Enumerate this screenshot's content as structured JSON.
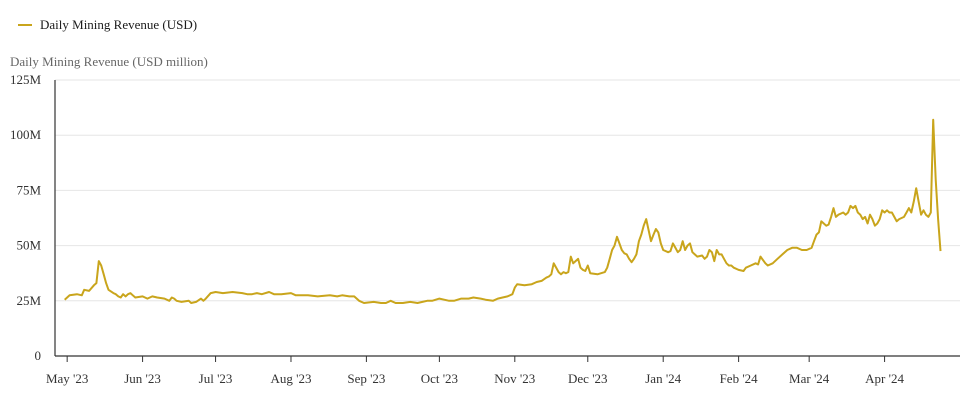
{
  "chart_data": {
    "type": "line",
    "ylabel": "Daily Mining Revenue (USD million)",
    "legend": {
      "position": "top-left"
    },
    "grid": {
      "horizontal": true,
      "vertical": false
    },
    "colors": {
      "line": "#c9a51c",
      "grid": "#e6e6e6",
      "axis": "#333333"
    },
    "y_ticks": [
      {
        "value": 0,
        "label": "0"
      },
      {
        "value": 25,
        "label": "25M"
      },
      {
        "value": 50,
        "label": "50M"
      },
      {
        "value": 75,
        "label": "75M"
      },
      {
        "value": 100,
        "label": "100M"
      },
      {
        "value": 125,
        "label": "125M"
      }
    ],
    "ylim": [
      0,
      125
    ],
    "xlim": [
      "2023-04-26",
      "2024-05-02"
    ],
    "x_ticks": [
      {
        "date": "2023-05-01",
        "label": "May '23"
      },
      {
        "date": "2023-06-01",
        "label": "Jun '23"
      },
      {
        "date": "2023-07-01",
        "label": "Jul '23"
      },
      {
        "date": "2023-08-01",
        "label": "Aug '23"
      },
      {
        "date": "2023-09-01",
        "label": "Sep '23"
      },
      {
        "date": "2023-10-01",
        "label": "Oct '23"
      },
      {
        "date": "2023-11-01",
        "label": "Nov '23"
      },
      {
        "date": "2023-12-01",
        "label": "Dec '23"
      },
      {
        "date": "2024-01-01",
        "label": "Jan '24"
      },
      {
        "date": "2024-02-01",
        "label": "Feb '24"
      },
      {
        "date": "2024-03-01",
        "label": "Mar '24"
      },
      {
        "date": "2024-04-01",
        "label": "Apr '24"
      }
    ],
    "series": [
      {
        "name": "Daily Mining Revenue (USD)",
        "points": [
          [
            "2023-04-30",
            25.5
          ],
          [
            "2023-05-02",
            27.5
          ],
          [
            "2023-05-05",
            28
          ],
          [
            "2023-05-07",
            27.5
          ],
          [
            "2023-05-08",
            30
          ],
          [
            "2023-05-10",
            29.5
          ],
          [
            "2023-05-12",
            32
          ],
          [
            "2023-05-13",
            33
          ],
          [
            "2023-05-14",
            43
          ],
          [
            "2023-05-15",
            41
          ],
          [
            "2023-05-16",
            37
          ],
          [
            "2023-05-17",
            33
          ],
          [
            "2023-05-18",
            30
          ],
          [
            "2023-05-20",
            28.5
          ],
          [
            "2023-05-21",
            28
          ],
          [
            "2023-05-22",
            27
          ],
          [
            "2023-05-23",
            26.5
          ],
          [
            "2023-05-24",
            28
          ],
          [
            "2023-05-25",
            27
          ],
          [
            "2023-05-26",
            28
          ],
          [
            "2023-05-27",
            28.5
          ],
          [
            "2023-05-28",
            27.5
          ],
          [
            "2023-05-29",
            26.5
          ],
          [
            "2023-06-01",
            27
          ],
          [
            "2023-06-03",
            26
          ],
          [
            "2023-06-05",
            27
          ],
          [
            "2023-06-07",
            26.5
          ],
          [
            "2023-06-10",
            26
          ],
          [
            "2023-06-12",
            25
          ],
          [
            "2023-06-13",
            26.5
          ],
          [
            "2023-06-14",
            26
          ],
          [
            "2023-06-15",
            25
          ],
          [
            "2023-06-17",
            24.5
          ],
          [
            "2023-06-20",
            25
          ],
          [
            "2023-06-21",
            24
          ],
          [
            "2023-06-23",
            24.5
          ],
          [
            "2023-06-25",
            26
          ],
          [
            "2023-06-26",
            25
          ],
          [
            "2023-06-27",
            26
          ],
          [
            "2023-06-29",
            28.5
          ],
          [
            "2023-07-01",
            29
          ],
          [
            "2023-07-04",
            28.5
          ],
          [
            "2023-07-08",
            29
          ],
          [
            "2023-07-12",
            28.5
          ],
          [
            "2023-07-14",
            28
          ],
          [
            "2023-07-16",
            28
          ],
          [
            "2023-07-18",
            28.5
          ],
          [
            "2023-07-20",
            28
          ],
          [
            "2023-07-23",
            29
          ],
          [
            "2023-07-25",
            28
          ],
          [
            "2023-07-28",
            28
          ],
          [
            "2023-08-01",
            28.5
          ],
          [
            "2023-08-03",
            27.5
          ],
          [
            "2023-08-08",
            27.5
          ],
          [
            "2023-08-12",
            27
          ],
          [
            "2023-08-17",
            27.5
          ],
          [
            "2023-08-20",
            27
          ],
          [
            "2023-08-22",
            27.5
          ],
          [
            "2023-08-25",
            27
          ],
          [
            "2023-08-27",
            27
          ],
          [
            "2023-08-29",
            25
          ],
          [
            "2023-08-31",
            24
          ],
          [
            "2023-09-04",
            24.5
          ],
          [
            "2023-09-07",
            24
          ],
          [
            "2023-09-09",
            24
          ],
          [
            "2023-09-11",
            25
          ],
          [
            "2023-09-13",
            24
          ],
          [
            "2023-09-16",
            24
          ],
          [
            "2023-09-19",
            24.5
          ],
          [
            "2023-09-22",
            24
          ],
          [
            "2023-09-24",
            24.5
          ],
          [
            "2023-09-26",
            25
          ],
          [
            "2023-09-28",
            25
          ],
          [
            "2023-10-01",
            26
          ],
          [
            "2023-10-03",
            25.5
          ],
          [
            "2023-10-05",
            25
          ],
          [
            "2023-10-07",
            25
          ],
          [
            "2023-10-10",
            26
          ],
          [
            "2023-10-13",
            26
          ],
          [
            "2023-10-15",
            26.5
          ],
          [
            "2023-10-18",
            26
          ],
          [
            "2023-10-20",
            25.5
          ],
          [
            "2023-10-23",
            25
          ],
          [
            "2023-10-25",
            26
          ],
          [
            "2023-10-27",
            26.5
          ],
          [
            "2023-10-29",
            27
          ],
          [
            "2023-10-31",
            28
          ],
          [
            "2023-11-01",
            31
          ],
          [
            "2023-11-02",
            32.5
          ],
          [
            "2023-11-05",
            32
          ],
          [
            "2023-11-08",
            32.5
          ],
          [
            "2023-11-10",
            33.5
          ],
          [
            "2023-11-12",
            34
          ],
          [
            "2023-11-14",
            35.5
          ],
          [
            "2023-11-15",
            36
          ],
          [
            "2023-11-16",
            37
          ],
          [
            "2023-11-17",
            42
          ],
          [
            "2023-11-18",
            40
          ],
          [
            "2023-11-19",
            38
          ],
          [
            "2023-11-20",
            37
          ],
          [
            "2023-11-21",
            38
          ],
          [
            "2023-11-22",
            37.5
          ],
          [
            "2023-11-23",
            38
          ],
          [
            "2023-11-24",
            45
          ],
          [
            "2023-11-25",
            42
          ],
          [
            "2023-11-26",
            43
          ],
          [
            "2023-11-27",
            44
          ],
          [
            "2023-11-28",
            40
          ],
          [
            "2023-11-29",
            39
          ],
          [
            "2023-11-30",
            38.5
          ],
          [
            "2023-12-01",
            41
          ],
          [
            "2023-12-02",
            37.5
          ],
          [
            "2023-12-05",
            37
          ],
          [
            "2023-12-08",
            38
          ],
          [
            "2023-12-09",
            40
          ],
          [
            "2023-12-10",
            44
          ],
          [
            "2023-12-11",
            48
          ],
          [
            "2023-12-12",
            50
          ],
          [
            "2023-12-13",
            54
          ],
          [
            "2023-12-14",
            51
          ],
          [
            "2023-12-15",
            48
          ],
          [
            "2023-12-16",
            46.5
          ],
          [
            "2023-12-17",
            46
          ],
          [
            "2023-12-18",
            44
          ],
          [
            "2023-12-19",
            42.5
          ],
          [
            "2023-12-20",
            44
          ],
          [
            "2023-12-21",
            46
          ],
          [
            "2023-12-22",
            52
          ],
          [
            "2023-12-23",
            55
          ],
          [
            "2023-12-24",
            59
          ],
          [
            "2023-12-25",
            62
          ],
          [
            "2023-12-26",
            57
          ],
          [
            "2023-12-27",
            52
          ],
          [
            "2023-12-28",
            55
          ],
          [
            "2023-12-29",
            57.5
          ],
          [
            "2023-12-30",
            56
          ],
          [
            "2023-12-31",
            51
          ],
          [
            "2024-01-01",
            48
          ],
          [
            "2024-01-03",
            47
          ],
          [
            "2024-01-04",
            47.5
          ],
          [
            "2024-01-05",
            51
          ],
          [
            "2024-01-06",
            49
          ],
          [
            "2024-01-07",
            47
          ],
          [
            "2024-01-08",
            48
          ],
          [
            "2024-01-09",
            52
          ],
          [
            "2024-01-10",
            48
          ],
          [
            "2024-01-11",
            50
          ],
          [
            "2024-01-12",
            51
          ],
          [
            "2024-01-13",
            47
          ],
          [
            "2024-01-14",
            46
          ],
          [
            "2024-01-15",
            45
          ],
          [
            "2024-01-17",
            45.5
          ],
          [
            "2024-01-18",
            44
          ],
          [
            "2024-01-19",
            45
          ],
          [
            "2024-01-20",
            48
          ],
          [
            "2024-01-21",
            47
          ],
          [
            "2024-01-22",
            43
          ],
          [
            "2024-01-23",
            48
          ],
          [
            "2024-01-24",
            46
          ],
          [
            "2024-01-25",
            46
          ],
          [
            "2024-01-26",
            44
          ],
          [
            "2024-01-27",
            42
          ],
          [
            "2024-01-28",
            41
          ],
          [
            "2024-01-29",
            41
          ],
          [
            "2024-01-30",
            40
          ],
          [
            "2024-02-01",
            39
          ],
          [
            "2024-02-03",
            38.5
          ],
          [
            "2024-02-04",
            40
          ],
          [
            "2024-02-06",
            41
          ],
          [
            "2024-02-08",
            42
          ],
          [
            "2024-02-09",
            41.5
          ],
          [
            "2024-02-10",
            45
          ],
          [
            "2024-02-12",
            42
          ],
          [
            "2024-02-13",
            41
          ],
          [
            "2024-02-15",
            42
          ],
          [
            "2024-02-17",
            44
          ],
          [
            "2024-02-19",
            46
          ],
          [
            "2024-02-21",
            48
          ],
          [
            "2024-02-23",
            49
          ],
          [
            "2024-02-25",
            49
          ],
          [
            "2024-02-27",
            48
          ],
          [
            "2024-02-29",
            48
          ],
          [
            "2024-03-02",
            49
          ],
          [
            "2024-03-03",
            52
          ],
          [
            "2024-03-04",
            55
          ],
          [
            "2024-03-05",
            56
          ],
          [
            "2024-03-06",
            61
          ],
          [
            "2024-03-07",
            60
          ],
          [
            "2024-03-08",
            59
          ],
          [
            "2024-03-09",
            59.5
          ],
          [
            "2024-03-10",
            63
          ],
          [
            "2024-03-11",
            67
          ],
          [
            "2024-03-12",
            63
          ],
          [
            "2024-03-13",
            64
          ],
          [
            "2024-03-14",
            64.5
          ],
          [
            "2024-03-15",
            65
          ],
          [
            "2024-03-16",
            64
          ],
          [
            "2024-03-17",
            65
          ],
          [
            "2024-03-18",
            68
          ],
          [
            "2024-03-19",
            67
          ],
          [
            "2024-03-20",
            68
          ],
          [
            "2024-03-21",
            65
          ],
          [
            "2024-03-22",
            64
          ],
          [
            "2024-03-23",
            62
          ],
          [
            "2024-03-24",
            63
          ],
          [
            "2024-03-25",
            60
          ],
          [
            "2024-03-26",
            64
          ],
          [
            "2024-03-27",
            62
          ],
          [
            "2024-03-28",
            59
          ],
          [
            "2024-03-29",
            60
          ],
          [
            "2024-03-30",
            62
          ],
          [
            "2024-03-31",
            66
          ],
          [
            "2024-04-01",
            65
          ],
          [
            "2024-04-02",
            66
          ],
          [
            "2024-04-03",
            65
          ],
          [
            "2024-04-04",
            65
          ],
          [
            "2024-04-05",
            63
          ],
          [
            "2024-04-06",
            61
          ],
          [
            "2024-04-07",
            62
          ],
          [
            "2024-04-08",
            62.5
          ],
          [
            "2024-04-09",
            63
          ],
          [
            "2024-04-10",
            65
          ],
          [
            "2024-04-11",
            67
          ],
          [
            "2024-04-12",
            65
          ],
          [
            "2024-04-13",
            70
          ],
          [
            "2024-04-14",
            76
          ],
          [
            "2024-04-15",
            70
          ],
          [
            "2024-04-16",
            64
          ],
          [
            "2024-04-17",
            66
          ],
          [
            "2024-04-18",
            64
          ],
          [
            "2024-04-19",
            63
          ],
          [
            "2024-04-20",
            65
          ],
          [
            "2024-04-21",
            107
          ],
          [
            "2024-04-22",
            80
          ],
          [
            "2024-04-23",
            62
          ],
          [
            "2024-04-24",
            47.5
          ]
        ]
      }
    ]
  }
}
